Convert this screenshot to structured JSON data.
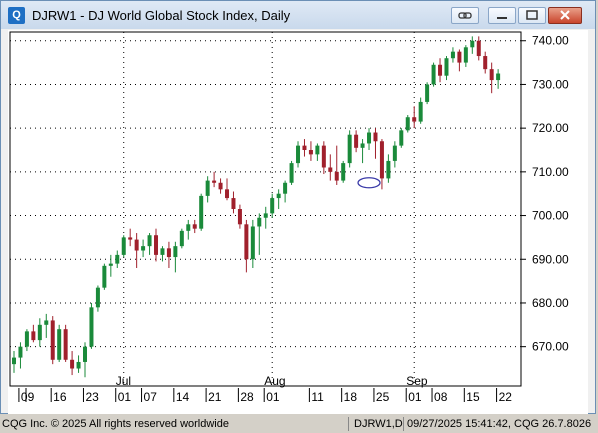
{
  "window": {
    "app_icon": "Q",
    "title": "DJRW1 - DJ World Global Stock Index, Daily",
    "buttons": [
      {
        "name": "link-button",
        "icon": "link-icon"
      },
      {
        "name": "minimize-button",
        "icon": "minimize-icon"
      },
      {
        "name": "maximize-button",
        "icon": "maximize-icon"
      },
      {
        "name": "close-button",
        "icon": "close-icon"
      }
    ]
  },
  "status_bar": {
    "copyright": "CQG Inc. © 2025 All rights reserved worldwide",
    "symbol": "DJRW1,D",
    "timestamp": "09/27/2025 15:41:42, CQG 26.7.8026"
  },
  "colors": {
    "up": "#1a8a3a",
    "down": "#a0202c",
    "grid": "#000000",
    "marker": "#3a3aa8"
  },
  "chart_data": {
    "type": "candlestick",
    "title": "DJ World Global Stock Index, Daily",
    "ylim": [
      661,
      742
    ],
    "y_ticks": [
      "740.00",
      "730.00",
      "720.00",
      "710.00",
      "700.00",
      "690.00",
      "680.00",
      "670.00"
    ],
    "y_tick_values": [
      740,
      730,
      720,
      710,
      700,
      690,
      680,
      670
    ],
    "x_day_labels": [
      "09",
      "16",
      "23",
      "01",
      "07",
      "14",
      "21",
      "28",
      "01",
      "11",
      "18",
      "25",
      "01",
      "08",
      "15",
      "22"
    ],
    "x_day_indices": [
      2,
      7,
      12,
      17,
      21,
      26,
      31,
      36,
      40,
      47,
      52,
      57,
      62,
      66,
      71,
      76
    ],
    "x_month_labels": [
      "Jul",
      "Aug",
      "Sep"
    ],
    "x_month_indices": [
      17,
      40,
      62
    ],
    "annotation": {
      "type": "ellipse",
      "bar_index": 55,
      "price": 707.5,
      "color": "#3a3aa8"
    },
    "candles": [
      [
        666.0,
        669.0,
        664.0,
        667.5
      ],
      [
        667.5,
        671.0,
        665.0,
        670.0
      ],
      [
        670.0,
        674.0,
        669.0,
        673.5
      ],
      [
        673.5,
        675.0,
        671.0,
        671.5
      ],
      [
        671.5,
        676.5,
        670.0,
        675.0
      ],
      [
        675.0,
        677.5,
        672.0,
        676.0
      ],
      [
        676.0,
        677.0,
        666.0,
        667.0
      ],
      [
        667.0,
        675.0,
        666.5,
        674.0
      ],
      [
        674.0,
        675.0,
        666.5,
        667.0
      ],
      [
        667.0,
        669.0,
        663.5,
        665.0
      ],
      [
        665.0,
        668.0,
        664.0,
        666.5
      ],
      [
        666.5,
        671.0,
        663.0,
        670.0
      ],
      [
        670.0,
        680.0,
        669.5,
        679.0
      ],
      [
        679.0,
        684.0,
        678.0,
        683.5
      ],
      [
        683.5,
        689.0,
        683.0,
        688.5
      ],
      [
        688.5,
        691.0,
        686.0,
        689.0
      ],
      [
        689.0,
        692.0,
        688.0,
        691.0
      ],
      [
        691.0,
        695.5,
        690.5,
        695.0
      ],
      [
        695.0,
        697.0,
        693.0,
        694.5
      ],
      [
        694.5,
        696.0,
        688.0,
        692.0
      ],
      [
        692.0,
        694.5,
        690.5,
        693.0
      ],
      [
        693.0,
        696.0,
        691.0,
        695.5
      ],
      [
        695.5,
        697.0,
        689.5,
        691.0
      ],
      [
        691.0,
        693.0,
        689.5,
        692.5
      ],
      [
        692.5,
        694.0,
        688.0,
        690.5
      ],
      [
        690.5,
        694.0,
        687.0,
        693.0
      ],
      [
        693.0,
        697.0,
        692.5,
        696.5
      ],
      [
        696.5,
        699.0,
        694.5,
        698.0
      ],
      [
        698.0,
        699.0,
        696.0,
        697.0
      ],
      [
        697.0,
        705.0,
        696.5,
        704.5
      ],
      [
        704.5,
        709.0,
        703.0,
        708.0
      ],
      [
        708.0,
        710.0,
        706.5,
        707.5
      ],
      [
        707.5,
        708.5,
        705.0,
        706.0
      ],
      [
        706.0,
        708.5,
        703.5,
        704.0
      ],
      [
        704.0,
        705.5,
        700.5,
        701.5
      ],
      [
        701.5,
        702.5,
        697.0,
        698.0
      ],
      [
        698.0,
        699.0,
        687.0,
        690.0
      ],
      [
        690.0,
        699.0,
        688.0,
        697.5
      ],
      [
        697.5,
        700.5,
        691.0,
        699.5
      ],
      [
        699.5,
        702.0,
        697.0,
        700.5
      ],
      [
        700.5,
        705.0,
        699.5,
        704.0
      ],
      [
        704.0,
        706.0,
        701.5,
        705.0
      ],
      [
        705.0,
        708.0,
        703.0,
        707.5
      ],
      [
        707.5,
        712.5,
        707.0,
        712.0
      ],
      [
        712.0,
        717.0,
        711.0,
        716.0
      ],
      [
        716.0,
        717.5,
        713.5,
        715.0
      ],
      [
        715.0,
        717.0,
        712.5,
        714.0
      ],
      [
        714.0,
        716.5,
        712.5,
        716.0
      ],
      [
        716.0,
        717.0,
        709.5,
        711.0
      ],
      [
        711.0,
        714.0,
        708.0,
        710.0
      ],
      [
        710.0,
        716.0,
        707.0,
        708.0
      ],
      [
        708.0,
        712.5,
        707.5,
        712.0
      ],
      [
        712.0,
        719.5,
        711.0,
        718.5
      ],
      [
        718.5,
        719.5,
        714.5,
        715.5
      ],
      [
        715.5,
        717.5,
        712.0,
        716.5
      ],
      [
        716.5,
        720.0,
        715.0,
        719.0
      ],
      [
        719.0,
        720.0,
        713.0,
        717.0
      ],
      [
        717.0,
        717.5,
        706.0,
        708.5
      ],
      [
        708.5,
        714.0,
        707.5,
        712.5
      ],
      [
        712.5,
        717.0,
        711.0,
        716.0
      ],
      [
        716.0,
        720.0,
        715.5,
        719.5
      ],
      [
        719.5,
        723.0,
        719.0,
        722.5
      ],
      [
        722.5,
        725.0,
        720.0,
        721.5
      ],
      [
        721.5,
        727.0,
        721.0,
        726.0
      ],
      [
        726.0,
        730.5,
        725.5,
        730.0
      ],
      [
        730.0,
        735.0,
        729.5,
        734.5
      ],
      [
        734.5,
        736.0,
        730.5,
        732.0
      ],
      [
        732.0,
        736.5,
        731.0,
        736.0
      ],
      [
        736.0,
        738.5,
        735.0,
        737.5
      ],
      [
        737.5,
        738.0,
        733.0,
        735.0
      ],
      [
        735.0,
        739.0,
        734.0,
        738.5
      ],
      [
        738.5,
        741.0,
        737.0,
        740.0
      ],
      [
        740.0,
        741.0,
        735.5,
        736.5
      ],
      [
        736.5,
        737.5,
        732.5,
        733.5
      ],
      [
        733.5,
        735.0,
        728.0,
        731.0
      ],
      [
        731.0,
        733.5,
        729.0,
        732.5
      ]
    ]
  }
}
